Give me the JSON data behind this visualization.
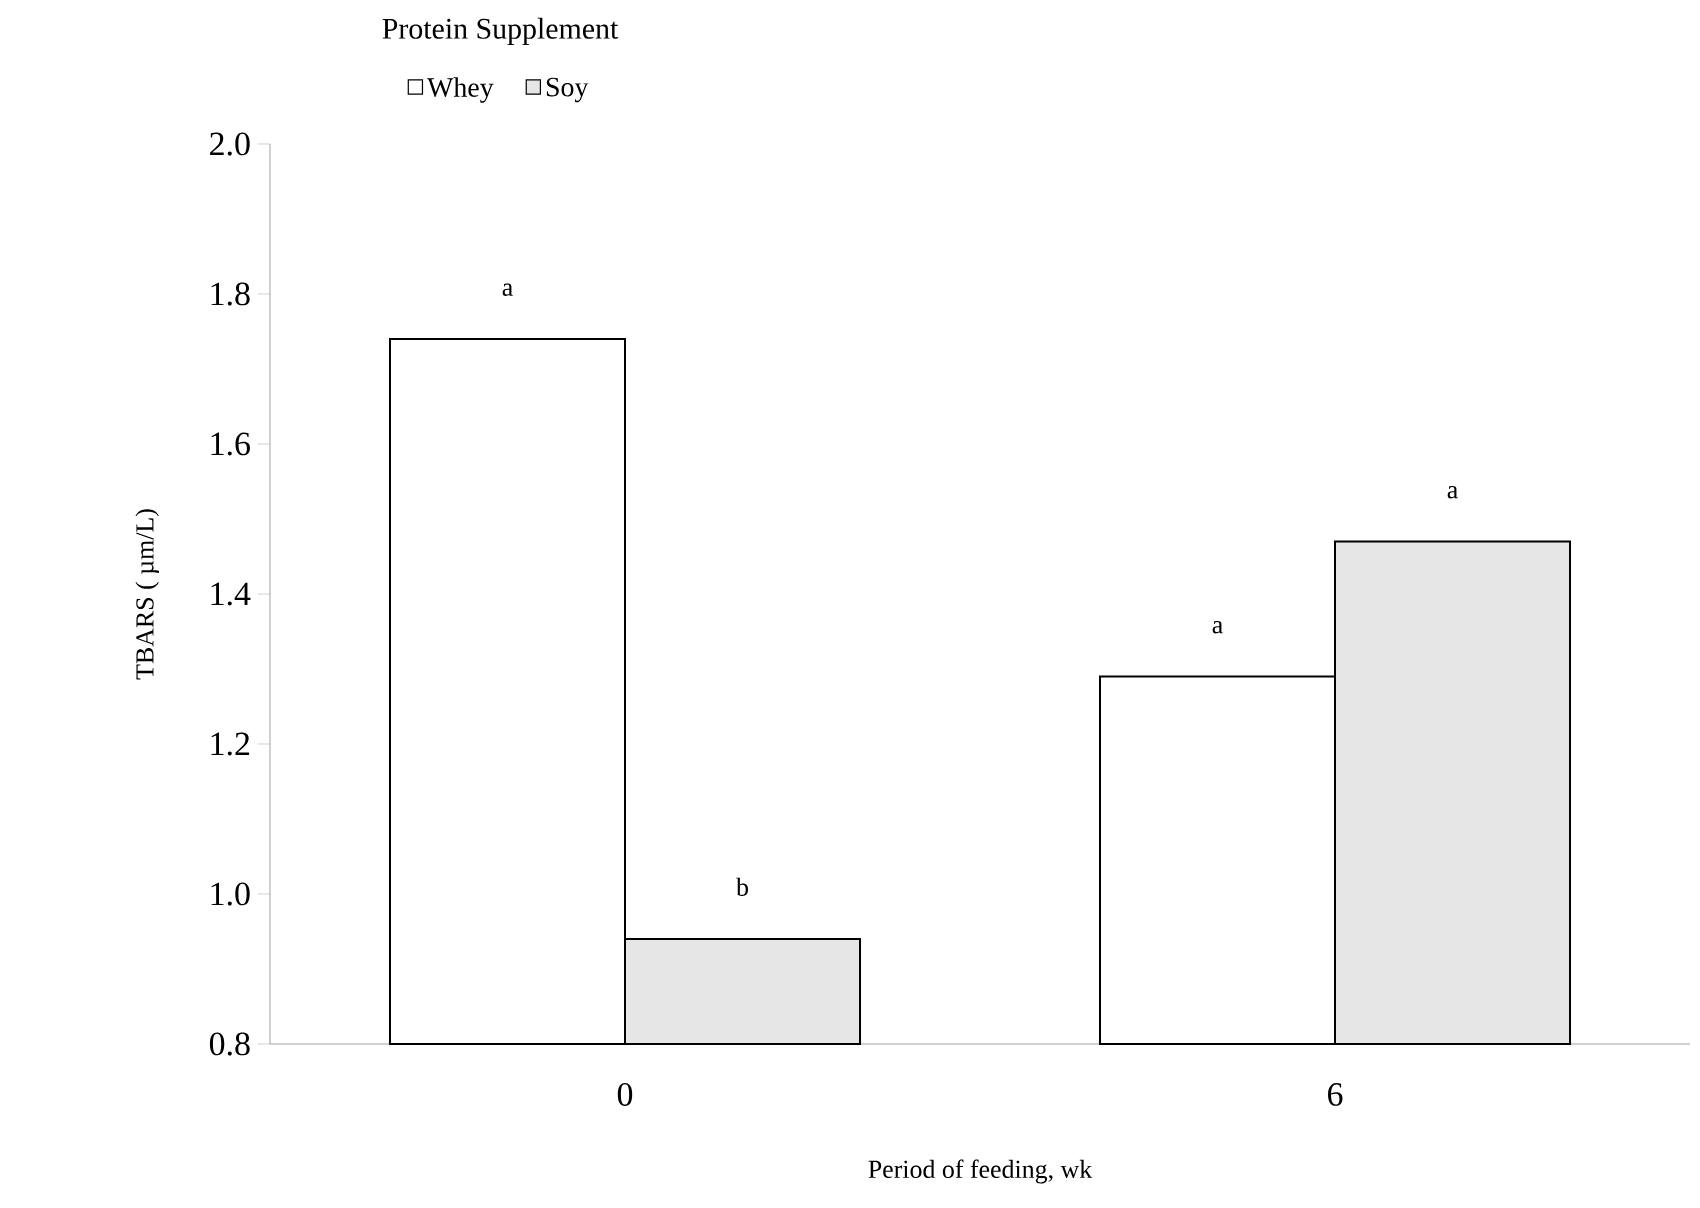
{
  "chart_data": {
    "type": "bar",
    "xlabel": "Period of feeding, wk",
    "ylabel": "TBARS ( µm/L)",
    "legend_title": "Protein Supplement",
    "legend": "top left",
    "categories": [
      "0",
      "6"
    ],
    "series": [
      {
        "name": "Whey",
        "color": "#ffffff",
        "values": [
          1.74,
          1.29
        ]
      },
      {
        "name": "Soy",
        "color": "#e6e6e6",
        "values": [
          0.94,
          1.47
        ]
      }
    ],
    "ylim": [
      0.8,
      2.0
    ],
    "yticks": [
      {
        "value": 0.8,
        "label": "0.8"
      },
      {
        "value": 1.0,
        "label": "1.0"
      },
      {
        "value": 1.2,
        "label": "1.2"
      },
      {
        "value": 1.4,
        "label": "1.4"
      },
      {
        "value": 1.6,
        "label": "1.6"
      },
      {
        "value": 1.8,
        "label": "1.8"
      },
      {
        "value": 2.0,
        "label": "2.0"
      }
    ],
    "annotations": [
      "a",
      "b",
      "a",
      "a"
    ]
  }
}
